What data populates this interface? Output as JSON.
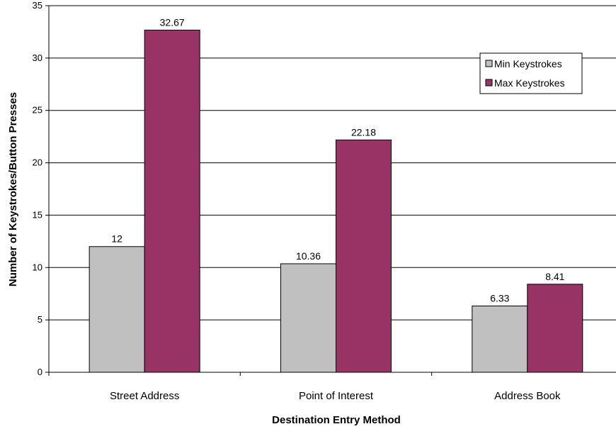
{
  "chart_data": {
    "type": "bar",
    "title": "",
    "xlabel": "Destination Entry Method",
    "ylabel": "Number of Keystrokes/Button Presses",
    "categories": [
      "Street Address",
      "Point of Interest",
      "Address Book"
    ],
    "series": [
      {
        "name": "Min Keystrokes",
        "values": [
          12,
          10.36,
          6.33
        ],
        "labels": [
          "12",
          "10.36",
          "6.33"
        ],
        "color": "#c0c0c0"
      },
      {
        "name": "Max Keystrokes",
        "values": [
          32.67,
          22.18,
          8.41
        ],
        "labels": [
          "32.67",
          "22.18",
          "8.41"
        ],
        "color": "#993366"
      }
    ],
    "ylim": [
      0,
      35
    ],
    "yticks": [
      0,
      5,
      10,
      15,
      20,
      25,
      30,
      35
    ],
    "grid": true,
    "legend_position": "top-right"
  }
}
